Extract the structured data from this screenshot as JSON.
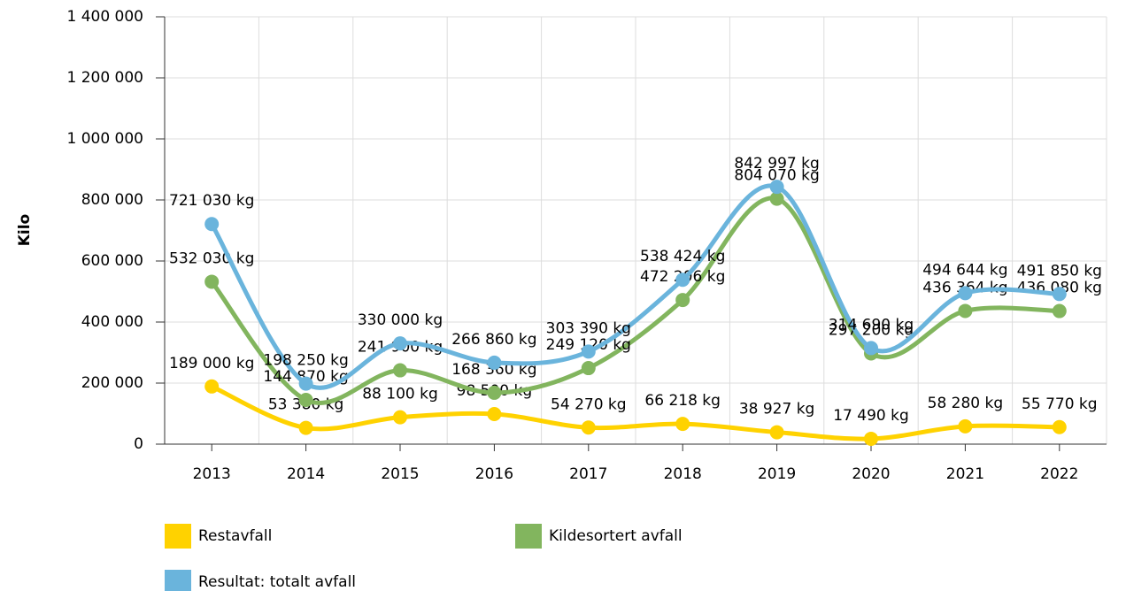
{
  "chart_data": {
    "type": "line",
    "ylabel": "Kilo",
    "categories": [
      "2013",
      "2014",
      "2015",
      "2016",
      "2017",
      "2018",
      "2019",
      "2020",
      "2021",
      "2022"
    ],
    "ylim": [
      0,
      1400000
    ],
    "yticks": [
      0,
      {
        "value": 200000,
        "label": "200 000"
      },
      {
        "value": 400000,
        "label": "400 000"
      },
      {
        "value": 600000,
        "label": "600 000"
      },
      {
        "value": 800000,
        "label": "800 000"
      },
      {
        "value": 1000000,
        "label": "1 000 000"
      },
      {
        "value": 1200000,
        "label": "1 200 000"
      },
      {
        "value": 1400000,
        "label": "1 400 000"
      }
    ],
    "grid": true,
    "series": [
      {
        "name": "Restavfall",
        "color": "#ffd200",
        "values": [
          189000,
          53380,
          88100,
          98500,
          54270,
          66218,
          38927,
          17490,
          58280,
          55770
        ],
        "value_labels": [
          "189 000 kg",
          "53 380 kg",
          "88 100 kg",
          "98 500 kg",
          "54 270 kg",
          "66 218 kg",
          "38 927 kg",
          "17 490 kg",
          "58 280 kg",
          "55 770 kg"
        ]
      },
      {
        "name": "Kildesortert avfall",
        "color": "#82b55e",
        "values": [
          532030,
          144870,
          241900,
          168360,
          249120,
          472206,
          804070,
          297200,
          436364,
          436080
        ],
        "value_labels": [
          "532 030 kg",
          "144 870 kg",
          "241 900 kg",
          "168 360 kg",
          "249 120 kg",
          "472 206 kg",
          "804 070 kg",
          "297 200 kg",
          "436 364 kg",
          "436 080 kg"
        ]
      },
      {
        "name": "Resultat: totalt avfall",
        "color": "#6ab4dc",
        "values": [
          721030,
          198250,
          330000,
          266860,
          303390,
          538424,
          842997,
          314690,
          494644,
          491850
        ],
        "value_labels": [
          "721 030 kg",
          "198 250 kg",
          "330 000 kg",
          "266 860 kg",
          "303 390 kg",
          "538 424 kg",
          "842 997 kg",
          "314 690 kg",
          "494 644 kg",
          "491 850 kg"
        ]
      }
    ]
  }
}
